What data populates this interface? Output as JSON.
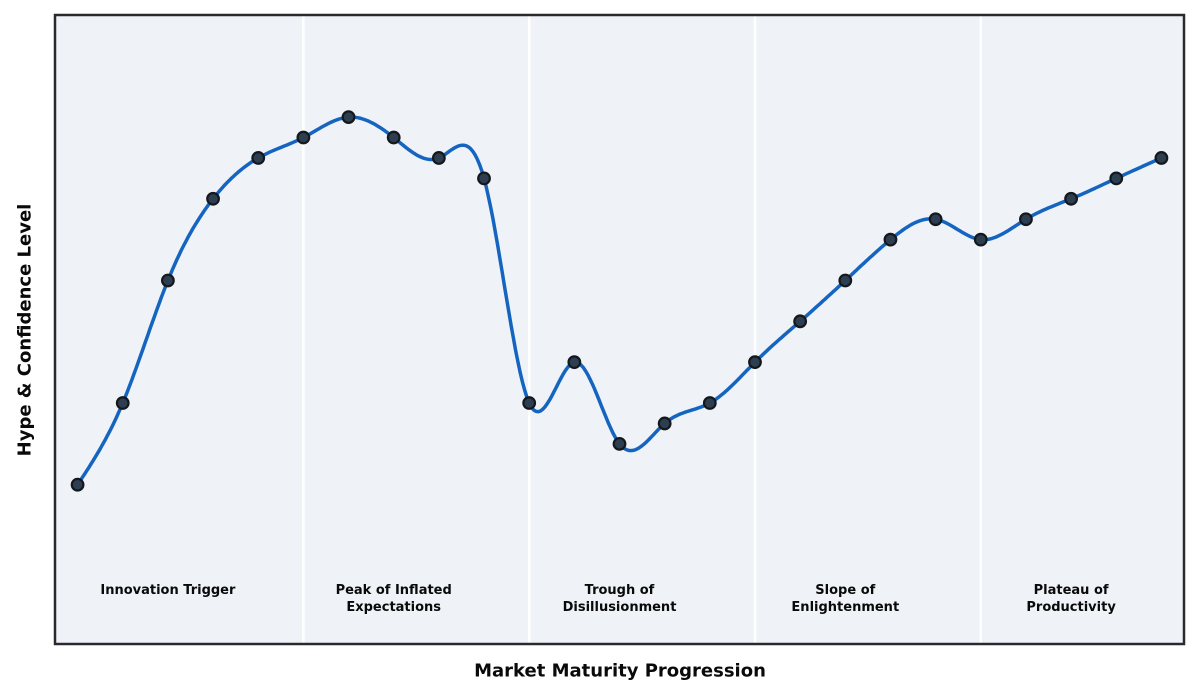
{
  "chart_data": {
    "type": "line",
    "curve": "smooth-cubic-spline",
    "marker": "circle",
    "grid": false,
    "xlabel": "Market Maturity Progression",
    "ylabel": "Hype & Confidence Level",
    "x": [
      0,
      1,
      2,
      3,
      4,
      5,
      6,
      7,
      8,
      9,
      10,
      11,
      12,
      13,
      14,
      15,
      16,
      17,
      18,
      19,
      20,
      21,
      22,
      23,
      24
    ],
    "values": [
      10,
      30,
      60,
      80,
      90,
      95,
      100,
      95,
      90,
      85,
      30,
      40,
      20,
      25,
      30,
      40,
      50,
      60,
      70,
      75,
      70,
      75,
      80,
      85,
      90
    ],
    "xlim": [
      -0.5,
      24.5
    ],
    "ylim": [
      -29,
      125
    ],
    "phase_dividers_x": [
      5,
      10,
      15,
      20
    ],
    "phase_label_y": -13.7,
    "phases": [
      {
        "label": "Innovation Trigger",
        "label_x": 2
      },
      {
        "label": "Peak of Inflated\nExpectations",
        "label_x": 7
      },
      {
        "label": "Trough of\nDisillusionment",
        "label_x": 12
      },
      {
        "label": "Slope of\nEnlightenment",
        "label_x": 17
      },
      {
        "label": "Plateau of\nProductivity",
        "label_x": 22
      }
    ],
    "colors": {
      "line": "#1565c0",
      "marker_fill": "#2c3e50",
      "marker_edge": "#14181d",
      "plot_background": "#eff3f8",
      "phase_divider": "#ffffff",
      "axes_border": "#2a2a2e",
      "text": "#0a0a0a",
      "figure_background": "#ffffff"
    }
  }
}
